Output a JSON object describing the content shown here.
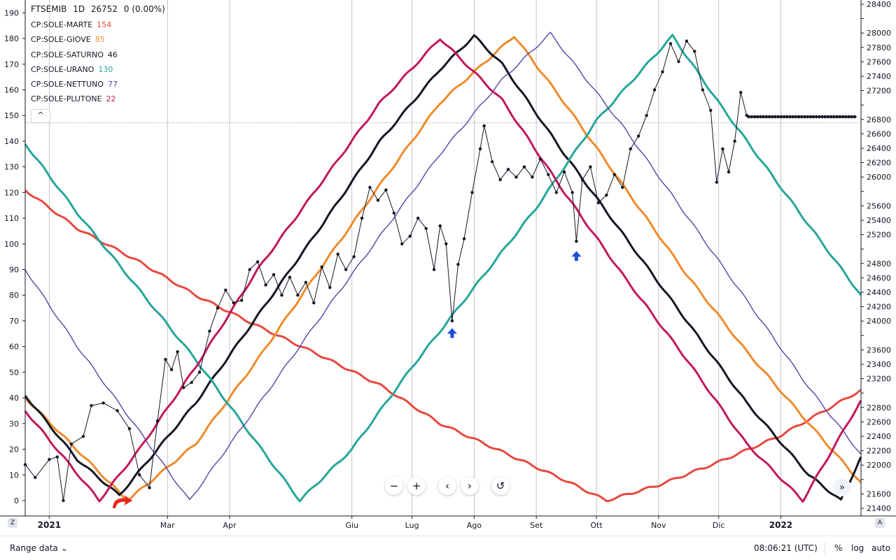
{
  "header": {
    "symbol": "FTSEMIB",
    "interval": "1D",
    "price": "26752",
    "change": "0 (0.00%)"
  },
  "legend": {
    "items": [
      {
        "name": "CP:SOLE-MARTE",
        "value": "154",
        "color": "#f0544f"
      },
      {
        "name": "CP:SOLE-GIOVE",
        "value": "85",
        "color": "#ef8b2c"
      },
      {
        "name": "CP:SOLE-SATURNO",
        "value": "46",
        "color": "#131722"
      },
      {
        "name": "CP:SOLE-URANO",
        "value": "130",
        "color": "#26a69a"
      },
      {
        "name": "CP:SOLE-NETTUNO",
        "value": "77",
        "color": "#5b3fa8"
      },
      {
        "name": "CP:SOLE-PLUTONE",
        "value": "22",
        "color": "#c2185b"
      }
    ],
    "collapse_label": "^"
  },
  "nav_buttons": {
    "zoom_out": "−",
    "zoom_in": "+",
    "prev": "‹",
    "next": "›",
    "reset": "↺",
    "scroll": "»"
  },
  "bottom_bar": {
    "range_label": "Range data ⌄",
    "time": "08:06:21 (UTC)",
    "percent": "%",
    "log": "log",
    "auto": "auto"
  },
  "corner_left": "Z",
  "corner_right": "A",
  "chart_data": {
    "type": "line",
    "x_axis": {
      "labels": [
        "2021",
        "Mar",
        "Apr",
        "Giu",
        "Lug",
        "Ago",
        "Set",
        "Ott",
        "Nov",
        "Dic",
        "2022"
      ],
      "label_dates": [
        "2021-01-01",
        "2021-03-01",
        "2021-04-01",
        "2021-06-01",
        "2021-07-01",
        "2021-08-01",
        "2021-09-01",
        "2021-10-01",
        "2021-11-01",
        "2021-12-01",
        "2022-01-01"
      ],
      "bold": [
        "2021",
        "2022"
      ],
      "range": [
        "2020-12-20",
        "2022-02-10"
      ]
    },
    "left_axis": {
      "ticks": [
        0,
        10,
        20,
        30,
        40,
        50,
        60,
        70,
        80,
        90,
        100,
        110,
        120,
        130,
        140,
        150,
        160,
        170,
        180,
        190
      ],
      "range": [
        -6,
        195
      ]
    },
    "right_axis": {
      "ticks": [
        21400,
        21600,
        21800,
        22000,
        22200,
        22400,
        22600,
        22800,
        23000,
        23200,
        23400,
        23600,
        23800,
        24000,
        24200,
        24400,
        24600,
        24800,
        25000,
        25200,
        25400,
        25600,
        25800,
        26000,
        26200,
        26400,
        26600,
        26800,
        27000,
        27200,
        27400,
        27600,
        27800,
        28000,
        28200,
        28400
      ],
      "labeled": [
        21400,
        21600,
        22000,
        22200,
        22400,
        22600,
        22800,
        23200,
        23400,
        23600,
        24000,
        24200,
        24400,
        24600,
        24800,
        25200,
        25400,
        25600,
        26000,
        26200,
        26400,
        26600,
        26800,
        27200,
        27400,
        27600,
        27800,
        28000,
        28400
      ]
    },
    "current_level": 26752,
    "grid": true,
    "series": [
      {
        "name": "CP:SOLE-MARTE",
        "color": "#e8483f",
        "points": [
          [
            "2020-12-20",
            121
          ],
          [
            "2021-01-15",
            106
          ],
          [
            "2021-02-15",
            93
          ],
          [
            "2021-03-15",
            80
          ],
          [
            "2021-04-15",
            68
          ],
          [
            "2021-05-15",
            57
          ],
          [
            "2021-06-15",
            45
          ],
          [
            "2021-07-15",
            30
          ],
          [
            "2021-08-15",
            19
          ],
          [
            "2021-09-15",
            8
          ],
          [
            "2021-10-06",
            0
          ],
          [
            "2021-11-01",
            6
          ],
          [
            "2021-12-01",
            15
          ],
          [
            "2021-12-31",
            25
          ],
          [
            "2022-02-10",
            43
          ]
        ]
      },
      {
        "name": "CP:SOLE-GIOVE",
        "color": "#ef8b2c",
        "points": [
          [
            "2020-12-20",
            40
          ],
          [
            "2021-02-09",
            0
          ],
          [
            "2021-03-15",
            22
          ],
          [
            "2021-04-15",
            55
          ],
          [
            "2021-05-15",
            89
          ],
          [
            "2021-06-15",
            123
          ],
          [
            "2021-07-15",
            155
          ],
          [
            "2021-08-21",
            181
          ],
          [
            "2021-09-15",
            155
          ],
          [
            "2021-10-15",
            122
          ],
          [
            "2021-11-15",
            88
          ],
          [
            "2021-12-15",
            58
          ],
          [
            "2022-01-15",
            30
          ],
          [
            "2022-02-10",
            7
          ]
        ]
      },
      {
        "name": "CP:SOLE-SATURNO",
        "color": "#131722",
        "points": [
          [
            "2020-12-20",
            41
          ],
          [
            "2021-01-15",
            16
          ],
          [
            "2021-02-05",
            2
          ],
          [
            "2021-03-15",
            38
          ],
          [
            "2021-04-15",
            72
          ],
          [
            "2021-05-15",
            105
          ],
          [
            "2021-06-15",
            140
          ],
          [
            "2021-07-15",
            168
          ],
          [
            "2021-08-01",
            181
          ],
          [
            "2021-08-15",
            170
          ],
          [
            "2021-09-15",
            135
          ],
          [
            "2021-10-15",
            103
          ],
          [
            "2021-11-15",
            70
          ],
          [
            "2021-12-15",
            38
          ],
          [
            "2022-01-15",
            10
          ],
          [
            "2022-01-31",
            0
          ],
          [
            "2022-02-10",
            17
          ]
        ]
      },
      {
        "name": "CP:SOLE-URANO",
        "color": "#26a69a",
        "points": [
          [
            "2020-12-20",
            139
          ],
          [
            "2021-01-15",
            112
          ],
          [
            "2021-02-15",
            82
          ],
          [
            "2021-03-15",
            55
          ],
          [
            "2021-04-15",
            22
          ],
          [
            "2021-05-06",
            0
          ],
          [
            "2021-06-01",
            20
          ],
          [
            "2021-07-01",
            52
          ],
          [
            "2021-08-01",
            83
          ],
          [
            "2021-09-01",
            114
          ],
          [
            "2021-10-01",
            148
          ],
          [
            "2021-11-01",
            175
          ],
          [
            "2021-11-08",
            181
          ],
          [
            "2021-12-01",
            155
          ],
          [
            "2022-01-01",
            122
          ],
          [
            "2022-02-10",
            80
          ]
        ]
      },
      {
        "name": "CP:SOLE-NETTUNO",
        "color": "#5b3fa8",
        "points": [
          [
            "2020-12-20",
            90
          ],
          [
            "2021-01-15",
            60
          ],
          [
            "2021-02-15",
            27
          ],
          [
            "2021-03-12",
            0
          ],
          [
            "2021-04-15",
            37
          ],
          [
            "2021-05-15",
            70
          ],
          [
            "2021-06-15",
            103
          ],
          [
            "2021-07-15",
            135
          ],
          [
            "2021-08-15",
            164
          ],
          [
            "2021-09-08",
            182
          ],
          [
            "2021-10-15",
            145
          ],
          [
            "2021-11-15",
            111
          ],
          [
            "2021-12-15",
            78
          ],
          [
            "2022-01-15",
            44
          ],
          [
            "2022-02-10",
            18
          ]
        ]
      },
      {
        "name": "CP:SOLE-PLUTONE",
        "color": "#c2185b",
        "points": [
          [
            "2020-12-20",
            35
          ],
          [
            "2021-01-26",
            0
          ],
          [
            "2021-02-15",
            20
          ],
          [
            "2021-03-15",
            52
          ],
          [
            "2021-04-15",
            90
          ],
          [
            "2021-05-15",
            122
          ],
          [
            "2021-06-15",
            155
          ],
          [
            "2021-07-15",
            180
          ],
          [
            "2021-08-15",
            156
          ],
          [
            "2021-09-15",
            120
          ],
          [
            "2021-10-15",
            87
          ],
          [
            "2021-11-15",
            55
          ],
          [
            "2021-12-15",
            22
          ],
          [
            "2022-01-12",
            0
          ],
          [
            "2022-02-10",
            39
          ]
        ]
      },
      {
        "name": "FTSEMIB",
        "color": "#131722",
        "markers": true,
        "points": [
          [
            "2020-12-20",
            14
          ],
          [
            "2020-12-25",
            9
          ],
          [
            "2021-01-01",
            16
          ],
          [
            "2021-01-05",
            17
          ],
          [
            "2021-01-08",
            0
          ],
          [
            "2021-01-12",
            22
          ],
          [
            "2021-01-18",
            25
          ],
          [
            "2021-01-22",
            37
          ],
          [
            "2021-01-28",
            38
          ],
          [
            "2021-02-04",
            35
          ],
          [
            "2021-02-10",
            28
          ],
          [
            "2021-02-15",
            10
          ],
          [
            "2021-02-20",
            5
          ],
          [
            "2021-02-24",
            31
          ],
          [
            "2021-02-28",
            55
          ],
          [
            "2021-03-03",
            51
          ],
          [
            "2021-03-06",
            58
          ],
          [
            "2021-03-09",
            44
          ],
          [
            "2021-03-13",
            46
          ],
          [
            "2021-03-17",
            50
          ],
          [
            "2021-03-22",
            66
          ],
          [
            "2021-03-26",
            75
          ],
          [
            "2021-03-30",
            82
          ],
          [
            "2021-04-03",
            77
          ],
          [
            "2021-04-07",
            78
          ],
          [
            "2021-04-11",
            90
          ],
          [
            "2021-04-15",
            93
          ],
          [
            "2021-04-19",
            84
          ],
          [
            "2021-04-23",
            88
          ],
          [
            "2021-04-27",
            80
          ],
          [
            "2021-05-01",
            87
          ],
          [
            "2021-05-05",
            80
          ],
          [
            "2021-05-09",
            85
          ],
          [
            "2021-05-13",
            77
          ],
          [
            "2021-05-17",
            91
          ],
          [
            "2021-05-21",
            83
          ],
          [
            "2021-05-25",
            96
          ],
          [
            "2021-05-29",
            90
          ],
          [
            "2021-06-02",
            95
          ],
          [
            "2021-06-06",
            110
          ],
          [
            "2021-06-10",
            122
          ],
          [
            "2021-06-14",
            117
          ],
          [
            "2021-06-18",
            121
          ],
          [
            "2021-06-22",
            112
          ],
          [
            "2021-06-26",
            100
          ],
          [
            "2021-06-30",
            103
          ],
          [
            "2021-07-04",
            110
          ],
          [
            "2021-07-08",
            106
          ],
          [
            "2021-07-12",
            90
          ],
          [
            "2021-07-15",
            107
          ],
          [
            "2021-07-18",
            100
          ],
          [
            "2021-07-21",
            70
          ],
          [
            "2021-07-24",
            92
          ],
          [
            "2021-07-27",
            102
          ],
          [
            "2021-07-31",
            120
          ],
          [
            "2021-08-04",
            137
          ],
          [
            "2021-08-06",
            146
          ],
          [
            "2021-08-10",
            132
          ],
          [
            "2021-08-14",
            125
          ],
          [
            "2021-08-18",
            129
          ],
          [
            "2021-08-22",
            126
          ],
          [
            "2021-08-26",
            130
          ],
          [
            "2021-08-30",
            126
          ],
          [
            "2021-09-03",
            133
          ],
          [
            "2021-09-07",
            127
          ],
          [
            "2021-09-11",
            120
          ],
          [
            "2021-09-15",
            128
          ],
          [
            "2021-09-19",
            120
          ],
          [
            "2021-09-21",
            101
          ],
          [
            "2021-09-24",
            125
          ],
          [
            "2021-09-28",
            130
          ],
          [
            "2021-10-02",
            116
          ],
          [
            "2021-10-06",
            119
          ],
          [
            "2021-10-10",
            127
          ],
          [
            "2021-10-14",
            122
          ],
          [
            "2021-10-18",
            137
          ],
          [
            "2021-10-22",
            142
          ],
          [
            "2021-10-26",
            150
          ],
          [
            "2021-10-30",
            160
          ],
          [
            "2021-11-03",
            167
          ],
          [
            "2021-11-07",
            178
          ],
          [
            "2021-11-11",
            171
          ],
          [
            "2021-11-15",
            179
          ],
          [
            "2021-11-19",
            175
          ],
          [
            "2021-11-23",
            160
          ],
          [
            "2021-11-27",
            152
          ],
          [
            "2021-11-30",
            124
          ],
          [
            "2021-12-03",
            137
          ],
          [
            "2021-12-06",
            128
          ],
          [
            "2021-12-09",
            140
          ],
          [
            "2021-12-12",
            159
          ],
          [
            "2021-12-15",
            150
          ]
        ]
      },
      {
        "name": "FTSEMIB projection",
        "color": "#131722",
        "markers": true,
        "flat": true,
        "points": [
          [
            "2021-12-16",
            149.5
          ],
          [
            "2022-02-08",
            149.5
          ]
        ]
      }
    ],
    "annotations": [
      {
        "type": "arrow-up",
        "color": "#1a4fd8",
        "date": "2021-07-21",
        "value": 65
      },
      {
        "type": "arrow-up",
        "color": "#1a4fd8",
        "date": "2021-09-21",
        "value": 95
      },
      {
        "type": "arrow-curved",
        "color": "#e8281f",
        "date": "2021-02-08",
        "value": 0
      }
    ]
  }
}
